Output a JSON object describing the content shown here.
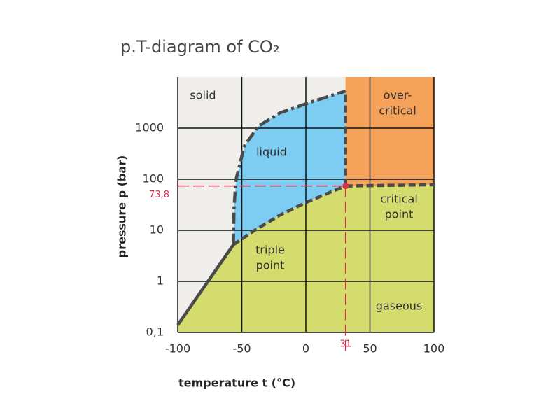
{
  "chart_data": {
    "type": "phase-diagram",
    "title": "p.T-diagram of CO₂",
    "x_label": "temperature t (°C)",
    "y_label": "pressure p (bar)",
    "xlim": [
      -100,
      100
    ],
    "xticks": [
      -100,
      -50,
      0,
      50,
      100
    ],
    "ylim": [
      0.1,
      10000
    ],
    "yticks": [
      {
        "value": 0.1,
        "label": "0,1"
      },
      1,
      10,
      100,
      1000
    ],
    "y_scale": "log",
    "grid": true,
    "series": [
      {
        "x": [
          -100,
          -56.6
        ],
        "values": [
          0.14,
          5.2
        ],
        "color": "#4a4a4a",
        "style": "solid"
      },
      {
        "x": [
          -56.6,
          -56,
          -54.5,
          -48,
          -37,
          -20,
          5,
          31
        ],
        "values": [
          5.2,
          30,
          100,
          450,
          1100,
          2000,
          3300,
          5300
        ],
        "color": "#4a4a4a",
        "style": "dash-dot"
      },
      {
        "x": [
          -56.6,
          -40,
          -20,
          0,
          20,
          31
        ],
        "values": [
          5.2,
          10,
          20,
          35,
          57,
          73.8
        ],
        "color": "#4a4a4a",
        "style": "dashed"
      },
      {
        "x": [
          31,
          31
        ],
        "values": [
          73.8,
          5300
        ],
        "color": "#4a4a4a",
        "style": "dashed"
      },
      {
        "x": [
          31,
          100
        ],
        "values": [
          73.8,
          78
        ],
        "color": "#4a4a4a",
        "style": "dashed"
      }
    ],
    "regions": [
      {
        "label": [
          "solid"
        ],
        "color": "#efeeea"
      },
      {
        "label": [
          "liquid"
        ],
        "color": "#7dcdf3"
      },
      {
        "label": [
          "over-",
          "critical"
        ],
        "color": "#f4a15a"
      },
      {
        "label": [
          "gaseous"
        ],
        "color": "#d3dc6c"
      }
    ],
    "annotations": [
      {
        "label": [
          "critical",
          "point"
        ]
      },
      {
        "label": [
          "triple",
          "point"
        ]
      }
    ],
    "critical_point": {
      "x": {
        "value": 31,
        "label": "31"
      },
      "y": {
        "value": 73.8,
        "label": "73,8"
      },
      "color": "#d92d4b"
    }
  }
}
